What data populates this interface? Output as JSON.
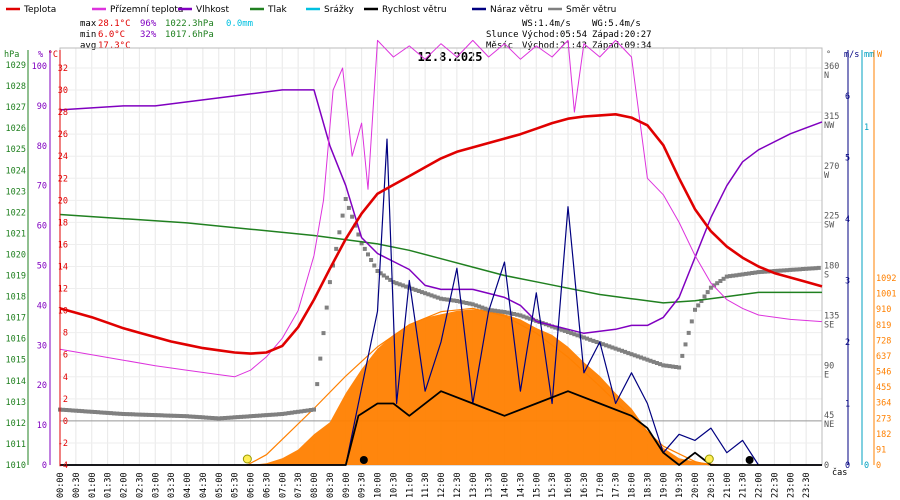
{
  "chart_data": {
    "type": "line",
    "date": "12.8.2025",
    "legend": [
      {
        "key": "temp",
        "label": "Teplota",
        "color": "#e00000"
      },
      {
        "key": "dew",
        "label": "Přízemní teplota",
        "color": "#dd33dd"
      },
      {
        "key": "hum",
        "label": "Vlhkost",
        "color": "#8000c0"
      },
      {
        "key": "press",
        "label": "Tlak",
        "color": "#208020"
      },
      {
        "key": "rain",
        "label": "Srážky",
        "color": "#00c0e0"
      },
      {
        "key": "wind",
        "label": "Rychlost větru",
        "color": "#000000"
      },
      {
        "key": "gust",
        "label": "Náraz větru",
        "color": "#000080"
      },
      {
        "key": "dir",
        "label": "Směr větru",
        "color": "#808080"
      }
    ],
    "stats": {
      "max": {
        "label": "max",
        "temp": "28.1°C",
        "hum": "96%",
        "press": "1022.3hPa",
        "rain": "0.0mm"
      },
      "min": {
        "label": "min",
        "temp": "6.0°C",
        "hum": "32%",
        "press": "1017.6hPa"
      },
      "avg": {
        "label": "avg",
        "temp": "17.3°C"
      }
    },
    "info": {
      "ws": "WS:1.4m/s",
      "wg": "WG:5.4m/s",
      "sun_label": "Slunce",
      "sunrise": "Východ:05:54",
      "sunset": "Západ:20:27",
      "moon_label": "Měsíc",
      "moonrise": "Východ:21:43",
      "moonset": "Západ:09:34"
    },
    "axes": {
      "hpa": {
        "unit": "hPa",
        "ticks": [
          1010,
          1011,
          1012,
          1013,
          1014,
          1015,
          1016,
          1017,
          1018,
          1019,
          1020,
          1021,
          1022,
          1023,
          1024,
          1025,
          1026,
          1027,
          1028,
          1029
        ]
      },
      "pct": {
        "unit": "%",
        "ticks": [
          0,
          10,
          20,
          30,
          40,
          50,
          60,
          70,
          80,
          90,
          100
        ]
      },
      "temp": {
        "unit": "°C",
        "ticks": [
          -4,
          -2,
          0,
          2,
          4,
          6,
          8,
          10,
          12,
          14,
          16,
          18,
          20,
          22,
          24,
          26,
          28,
          30,
          32
        ]
      },
      "dir": {
        "unit": "°",
        "ticks": [
          {
            "deg": 0,
            "label": "0"
          },
          {
            "deg": 45,
            "label": "45",
            "comp": "NE"
          },
          {
            "deg": 90,
            "label": "90",
            "comp": "E"
          },
          {
            "deg": 135,
            "label": "135",
            "comp": "SE"
          },
          {
            "deg": 180,
            "label": "180",
            "comp": "S"
          },
          {
            "deg": 225,
            "label": "225",
            "comp": "SW"
          },
          {
            "deg": 270,
            "label": "270",
            "comp": "W"
          },
          {
            "deg": 315,
            "label": "315",
            "comp": "NW"
          },
          {
            "deg": 360,
            "label": "360",
            "comp": "N"
          }
        ]
      },
      "ms": {
        "unit": "m/s",
        "ticks": [
          0,
          1,
          2,
          3,
          4,
          5,
          6
        ]
      },
      "mm": {
        "unit": "mm",
        "ticks": [
          0,
          1
        ]
      },
      "w": {
        "unit": "W",
        "ticks": [
          0,
          91,
          182,
          273,
          364,
          455,
          546,
          637,
          728,
          819,
          910,
          1001,
          1092
        ]
      },
      "x": {
        "label": "čas",
        "ticks": [
          "00:00",
          "00:30",
          "01:00",
          "01:30",
          "02:00",
          "02:30",
          "03:00",
          "03:30",
          "04:00",
          "04:30",
          "05:00",
          "05:30",
          "06:00",
          "06:30",
          "07:00",
          "07:30",
          "08:00",
          "08:30",
          "09:00",
          "09:30",
          "10:00",
          "10:30",
          "11:00",
          "11:30",
          "12:00",
          "12:30",
          "13:00",
          "13:30",
          "14:00",
          "14:30",
          "15:00",
          "15:30",
          "16:00",
          "16:30",
          "17:00",
          "17:30",
          "18:00",
          "18:30",
          "19:00",
          "19:30",
          "20:00",
          "20:30",
          "21:00",
          "21:30",
          "22:00",
          "22:30",
          "23:00",
          "23:30"
        ]
      }
    },
    "series": {
      "temp": [
        [
          0,
          10.2
        ],
        [
          0.5,
          9.8
        ],
        [
          1,
          9.4
        ],
        [
          1.5,
          8.9
        ],
        [
          2,
          8.4
        ],
        [
          2.5,
          8.0
        ],
        [
          3,
          7.6
        ],
        [
          3.5,
          7.2
        ],
        [
          4,
          6.9
        ],
        [
          4.5,
          6.6
        ],
        [
          5,
          6.4
        ],
        [
          5.5,
          6.2
        ],
        [
          6,
          6.1
        ],
        [
          6.5,
          6.2
        ],
        [
          7,
          6.8
        ],
        [
          7.5,
          8.5
        ],
        [
          8,
          11.0
        ],
        [
          8.5,
          13.8
        ],
        [
          9,
          16.5
        ],
        [
          9.5,
          18.8
        ],
        [
          10,
          20.6
        ],
        [
          10.5,
          21.4
        ],
        [
          11,
          22.2
        ],
        [
          11.5,
          23.0
        ],
        [
          12,
          23.8
        ],
        [
          12.5,
          24.4
        ],
        [
          13,
          24.8
        ],
        [
          13.5,
          25.2
        ],
        [
          14,
          25.6
        ],
        [
          14.5,
          26.0
        ],
        [
          15,
          26.5
        ],
        [
          15.5,
          27.0
        ],
        [
          16,
          27.4
        ],
        [
          16.5,
          27.6
        ],
        [
          17,
          27.7
        ],
        [
          17.5,
          27.8
        ],
        [
          18,
          27.5
        ],
        [
          18.5,
          26.8
        ],
        [
          19,
          25.0
        ],
        [
          19.5,
          22.0
        ],
        [
          20,
          19.2
        ],
        [
          20.5,
          17.2
        ],
        [
          21,
          15.8
        ],
        [
          21.5,
          14.8
        ],
        [
          22,
          14.0
        ],
        [
          22.5,
          13.4
        ],
        [
          23,
          13.0
        ],
        [
          23.5,
          12.6
        ],
        [
          24,
          12.2
        ]
      ],
      "dew": [
        [
          0,
          6.5
        ],
        [
          1,
          6.0
        ],
        [
          2,
          5.5
        ],
        [
          3,
          5.0
        ],
        [
          4,
          4.6
        ],
        [
          5,
          4.2
        ],
        [
          5.5,
          4.0
        ],
        [
          6,
          4.6
        ],
        [
          6.5,
          5.8
        ],
        [
          7,
          7.5
        ],
        [
          7.5,
          10.0
        ],
        [
          8,
          15.0
        ],
        [
          8.3,
          20.0
        ],
        [
          8.6,
          30.0
        ],
        [
          8.9,
          32.0
        ],
        [
          9.2,
          24.0
        ],
        [
          9.5,
          27.0
        ],
        [
          9.7,
          21.0
        ],
        [
          9.9,
          30.0
        ],
        [
          10,
          34.5
        ],
        [
          10.5,
          33.0
        ],
        [
          11,
          34.0
        ],
        [
          11.5,
          32.8
        ],
        [
          12,
          34.2
        ],
        [
          12.5,
          33.0
        ],
        [
          13,
          34.5
        ],
        [
          13.5,
          33.0
        ],
        [
          14,
          34.2
        ],
        [
          14.5,
          32.8
        ],
        [
          15,
          34.0
        ],
        [
          15.5,
          33.0
        ],
        [
          16,
          34.5
        ],
        [
          16.2,
          28.0
        ],
        [
          16.5,
          34.2
        ],
        [
          17,
          33.0
        ],
        [
          17.5,
          34.5
        ],
        [
          18,
          33.0
        ],
        [
          18.5,
          22.0
        ],
        [
          19,
          20.5
        ],
        [
          19.5,
          18.0
        ],
        [
          20,
          15.0
        ],
        [
          20.5,
          12.5
        ],
        [
          21,
          11.0
        ],
        [
          21.5,
          10.2
        ],
        [
          22,
          9.6
        ],
        [
          23,
          9.2
        ],
        [
          24,
          9.0
        ]
      ],
      "hum": [
        [
          0,
          89
        ],
        [
          1,
          89.5
        ],
        [
          2,
          90
        ],
        [
          3,
          90
        ],
        [
          4,
          91
        ],
        [
          5,
          92
        ],
        [
          6,
          93
        ],
        [
          7,
          94
        ],
        [
          8,
          94
        ],
        [
          8.5,
          80
        ],
        [
          9,
          70
        ],
        [
          9.5,
          57
        ],
        [
          10,
          53
        ],
        [
          10.5,
          51
        ],
        [
          11,
          49
        ],
        [
          11.5,
          45
        ],
        [
          12,
          44
        ],
        [
          12.5,
          44
        ],
        [
          13,
          44
        ],
        [
          13.5,
          43
        ],
        [
          14,
          42
        ],
        [
          14.5,
          40
        ],
        [
          15,
          36
        ],
        [
          15.5,
          35
        ],
        [
          16,
          34
        ],
        [
          16.5,
          33
        ],
        [
          17,
          33.5
        ],
        [
          17.5,
          34
        ],
        [
          18,
          35
        ],
        [
          18.5,
          35
        ],
        [
          19,
          37
        ],
        [
          19.5,
          42
        ],
        [
          20,
          52
        ],
        [
          20.5,
          62
        ],
        [
          21,
          70
        ],
        [
          21.5,
          76
        ],
        [
          22,
          79
        ],
        [
          23,
          83
        ],
        [
          24,
          86
        ]
      ],
      "press": [
        [
          0,
          1021.9
        ],
        [
          2,
          1021.7
        ],
        [
          4,
          1021.5
        ],
        [
          6,
          1021.2
        ],
        [
          8,
          1020.9
        ],
        [
          10,
          1020.5
        ],
        [
          11,
          1020.2
        ],
        [
          12,
          1019.8
        ],
        [
          13,
          1019.4
        ],
        [
          14,
          1019.0
        ],
        [
          15,
          1018.7
        ],
        [
          16,
          1018.4
        ],
        [
          17,
          1018.1
        ],
        [
          18,
          1017.9
        ],
        [
          19,
          1017.7
        ],
        [
          20,
          1017.8
        ],
        [
          21,
          1018.0
        ],
        [
          22,
          1018.2
        ],
        [
          23,
          1018.2
        ],
        [
          24,
          1018.2
        ]
      ],
      "wind": [
        [
          0,
          0
        ],
        [
          9,
          0
        ],
        [
          9.4,
          0.8
        ],
        [
          10,
          1.0
        ],
        [
          10.5,
          1.0
        ],
        [
          11,
          0.8
        ],
        [
          12,
          1.2
        ],
        [
          13,
          1.0
        ],
        [
          14,
          0.8
        ],
        [
          15,
          1.0
        ],
        [
          16,
          1.2
        ],
        [
          17,
          1.0
        ],
        [
          18,
          0.8
        ],
        [
          18.5,
          0.6
        ],
        [
          19,
          0.2
        ],
        [
          19.5,
          0.0
        ],
        [
          20,
          0.2
        ],
        [
          20.5,
          0.0
        ],
        [
          24,
          0
        ]
      ],
      "gust": [
        [
          0,
          0
        ],
        [
          9,
          0
        ],
        [
          9.4,
          1.0
        ],
        [
          10,
          2.5
        ],
        [
          10.3,
          5.3
        ],
        [
          10.6,
          1.0
        ],
        [
          11,
          3.0
        ],
        [
          11.5,
          1.2
        ],
        [
          12,
          2.0
        ],
        [
          12.5,
          3.2
        ],
        [
          13,
          1.0
        ],
        [
          13.5,
          2.5
        ],
        [
          14,
          3.3
        ],
        [
          14.5,
          1.2
        ],
        [
          15,
          2.8
        ],
        [
          15.5,
          1.0
        ],
        [
          16,
          4.2
        ],
        [
          16.5,
          1.5
        ],
        [
          17,
          2.0
        ],
        [
          17.5,
          1.0
        ],
        [
          18,
          1.5
        ],
        [
          18.5,
          1.0
        ],
        [
          19,
          0.2
        ],
        [
          19.5,
          0.5
        ],
        [
          20,
          0.4
        ],
        [
          20.5,
          0.6
        ],
        [
          21,
          0.2
        ],
        [
          21.5,
          0.4
        ],
        [
          22,
          0.0
        ],
        [
          24,
          0
        ]
      ],
      "solar": [
        [
          0,
          0
        ],
        [
          6,
          0
        ],
        [
          6.5,
          10
        ],
        [
          7,
          40
        ],
        [
          7.5,
          90
        ],
        [
          8,
          180
        ],
        [
          8.5,
          250
        ],
        [
          9,
          420
        ],
        [
          9.5,
          560
        ],
        [
          10,
          680
        ],
        [
          10.5,
          760
        ],
        [
          11,
          820
        ],
        [
          11.5,
          860
        ],
        [
          12,
          880
        ],
        [
          12.5,
          900
        ],
        [
          13,
          910
        ],
        [
          13.5,
          905
        ],
        [
          14,
          880
        ],
        [
          14.5,
          850
        ],
        [
          15,
          800
        ],
        [
          15.5,
          760
        ],
        [
          16,
          690
        ],
        [
          16.5,
          600
        ],
        [
          17,
          520
        ],
        [
          17.5,
          420
        ],
        [
          18,
          330
        ],
        [
          18.5,
          200
        ],
        [
          19,
          100
        ],
        [
          19.5,
          40
        ],
        [
          20,
          20
        ],
        [
          20.5,
          8
        ],
        [
          21,
          0
        ],
        [
          24,
          0
        ]
      ],
      "solar_theory": [
        [
          5.9,
          0
        ],
        [
          6.5,
          60
        ],
        [
          7,
          150
        ],
        [
          8,
          330
        ],
        [
          9,
          520
        ],
        [
          10,
          690
        ],
        [
          11,
          820
        ],
        [
          12,
          895
        ],
        [
          13,
          915
        ],
        [
          14,
          870
        ],
        [
          15,
          770
        ],
        [
          16,
          630
        ],
        [
          17,
          460
        ],
        [
          18,
          280
        ],
        [
          19,
          110
        ],
        [
          20,
          20
        ],
        [
          20.45,
          0
        ]
      ],
      "dir": [
        [
          0,
          50
        ],
        [
          1,
          48
        ],
        [
          2,
          46
        ],
        [
          3,
          45
        ],
        [
          4,
          44
        ],
        [
          5,
          42
        ],
        [
          6,
          44
        ],
        [
          7,
          46
        ],
        [
          8,
          50
        ],
        [
          8.5,
          165
        ],
        [
          9,
          240
        ],
        [
          9.5,
          200
        ],
        [
          10,
          175
        ],
        [
          10.5,
          165
        ],
        [
          11,
          160
        ],
        [
          11.5,
          155
        ],
        [
          12,
          150
        ],
        [
          12.5,
          148
        ],
        [
          13,
          145
        ],
        [
          13.5,
          140
        ],
        [
          14,
          138
        ],
        [
          14.5,
          135
        ],
        [
          15,
          130
        ],
        [
          15.5,
          125
        ],
        [
          16,
          120
        ],
        [
          16.5,
          115
        ],
        [
          17,
          110
        ],
        [
          17.5,
          105
        ],
        [
          18,
          100
        ],
        [
          18.5,
          95
        ],
        [
          19,
          90
        ],
        [
          19.5,
          88
        ],
        [
          20,
          140
        ],
        [
          20.5,
          160
        ],
        [
          21,
          170
        ],
        [
          21.5,
          172
        ],
        [
          22,
          174
        ],
        [
          23,
          176
        ],
        [
          24,
          178
        ]
      ]
    }
  }
}
